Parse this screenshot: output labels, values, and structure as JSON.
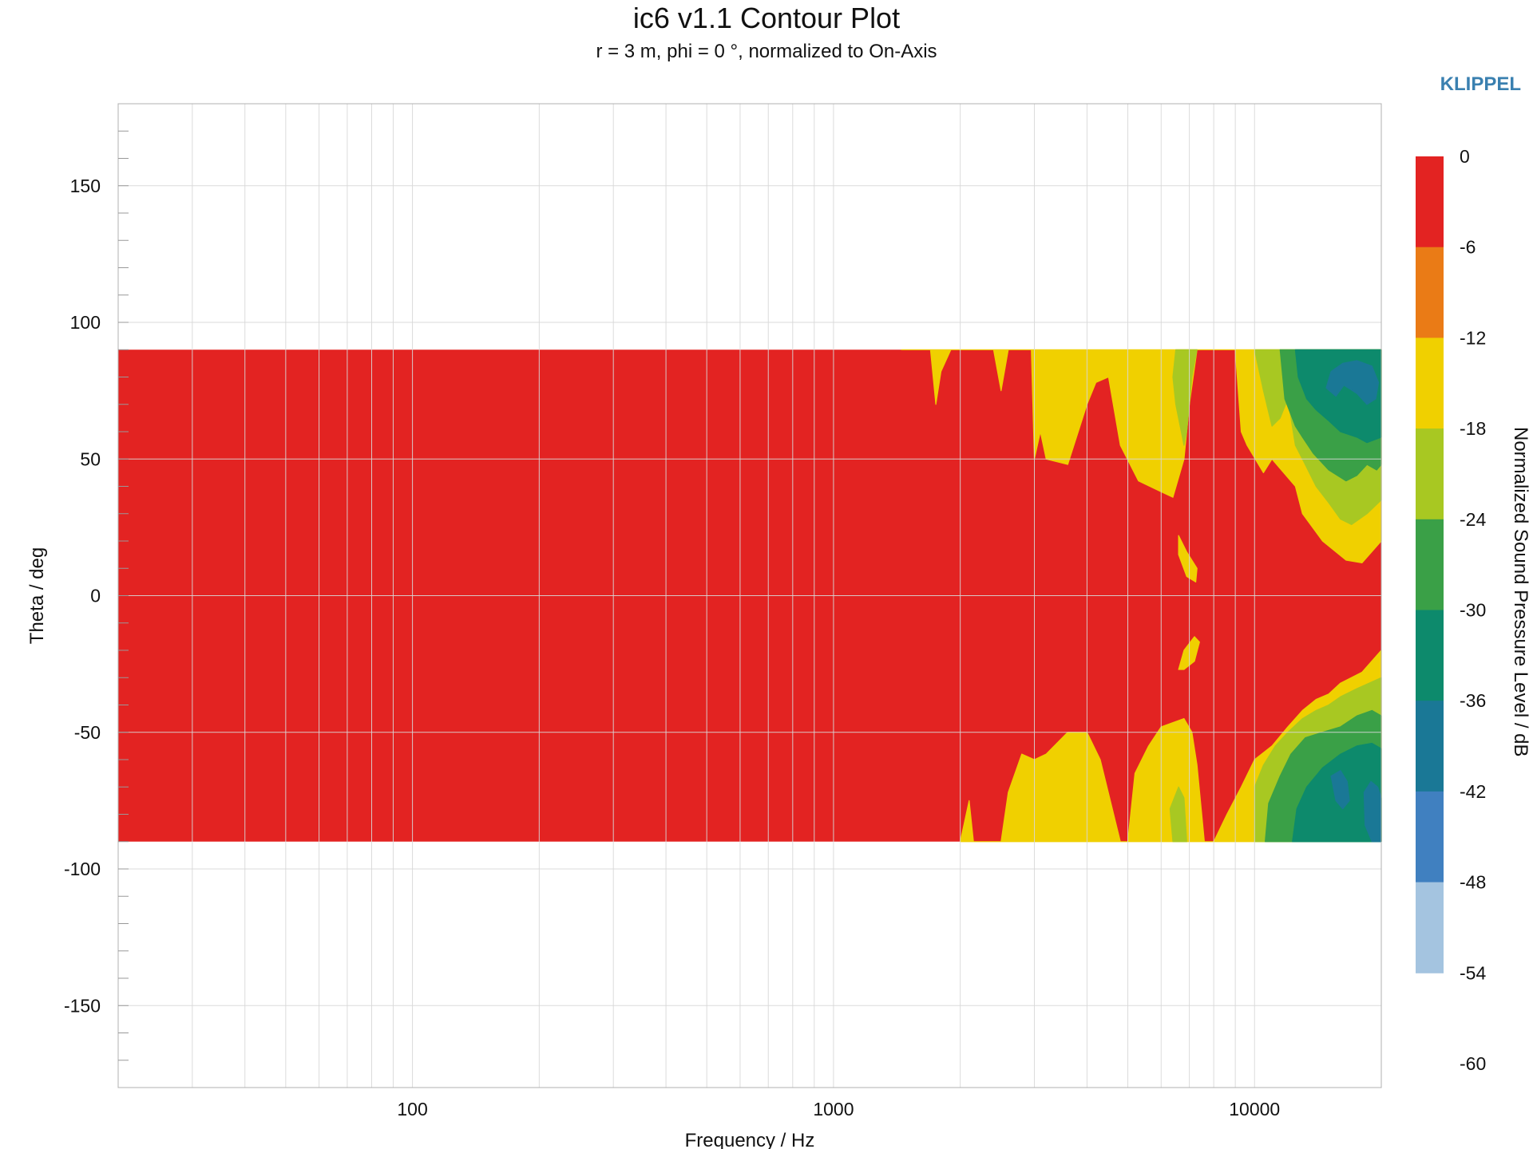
{
  "title": "ic6 v1.1 Contour Plot",
  "subtitle": "r = 3 m, phi = 0 °, normalized to On-Axis",
  "brand": {
    "label": "KLIPPEL",
    "color": "#3a80b0"
  },
  "chart_data": {
    "type": "heatmap",
    "title": "ic6 v1.1 Contour Plot",
    "subtitle": "r = 3 m, phi = 0 °, normalized to On-Axis",
    "xlabel": "Frequency / Hz",
    "ylabel": "Theta / deg",
    "x_scale": "log",
    "xlim": [
      20,
      20000
    ],
    "ylim": [
      -180,
      180
    ],
    "x_ticks": [
      {
        "value": 100,
        "label": "100"
      },
      {
        "value": 1000,
        "label": "1000"
      },
      {
        "value": 10000,
        "label": "10000"
      }
    ],
    "y_ticks": [
      {
        "value": 150,
        "label": "150"
      },
      {
        "value": 100,
        "label": "100"
      },
      {
        "value": 50,
        "label": "50"
      },
      {
        "value": 0,
        "label": "0"
      },
      {
        "value": -50,
        "label": "-50"
      },
      {
        "value": -100,
        "label": "-100"
      },
      {
        "value": -150,
        "label": "-150"
      }
    ],
    "grid": true,
    "data_theta_range": [
      -90,
      90
    ],
    "colorbar": {
      "label": "Normalized Sound Pressure Level / dB",
      "ticks": [
        0,
        -6,
        -12,
        -18,
        -24,
        -30,
        -36,
        -42,
        -48,
        -54,
        -60
      ],
      "bands": [
        {
          "min": -6,
          "max": 0,
          "color": "#e32322"
        },
        {
          "min": -12,
          "max": -6,
          "color": "#ea7b16"
        },
        {
          "min": -18,
          "max": -12,
          "color": "#f0d000"
        },
        {
          "min": -24,
          "max": -18,
          "color": "#a8c822"
        },
        {
          "min": -30,
          "max": -24,
          "color": "#3aa047"
        },
        {
          "min": -36,
          "max": -30,
          "color": "#0d8a6c"
        },
        {
          "min": -42,
          "max": -36,
          "color": "#1a7896"
        },
        {
          "min": -48,
          "max": -42,
          "color": "#4080c0"
        },
        {
          "min": -54,
          "max": -48,
          "color": "#a4c4e0"
        }
      ]
    },
    "regions": [
      {
        "level": -12,
        "points": [
          [
            1450,
            90
          ],
          [
            1700,
            90
          ],
          [
            1750,
            70
          ],
          [
            1800,
            82
          ],
          [
            1900,
            90
          ],
          [
            2400,
            90
          ],
          [
            2500,
            75
          ],
          [
            2600,
            90
          ],
          [
            2950,
            90
          ],
          [
            3000,
            50
          ],
          [
            3100,
            60
          ],
          [
            3200,
            50
          ],
          [
            3600,
            48
          ],
          [
            4000,
            70
          ],
          [
            4200,
            78
          ],
          [
            4500,
            80
          ],
          [
            4800,
            55
          ],
          [
            5300,
            42
          ],
          [
            6000,
            38
          ],
          [
            6400,
            36
          ],
          [
            6800,
            50
          ],
          [
            7000,
            70
          ],
          [
            7300,
            90
          ],
          [
            9000,
            90
          ],
          [
            9300,
            60
          ],
          [
            9600,
            55
          ],
          [
            10500,
            45
          ],
          [
            11000,
            50
          ],
          [
            12500,
            40
          ],
          [
            13000,
            30
          ],
          [
            14500,
            20
          ],
          [
            16500,
            13
          ],
          [
            18000,
            12
          ],
          [
            20000,
            20
          ],
          [
            20000,
            90
          ],
          [
            1450,
            90
          ]
        ]
      },
      {
        "level": -12,
        "points": [
          [
            6600,
            22
          ],
          [
            6900,
            16
          ],
          [
            7300,
            10
          ],
          [
            7250,
            5
          ],
          [
            6900,
            7
          ],
          [
            6600,
            15
          ],
          [
            6600,
            22
          ]
        ]
      },
      {
        "level": -12,
        "points": [
          [
            6600,
            -27
          ],
          [
            6800,
            -20
          ],
          [
            7200,
            -15
          ],
          [
            7400,
            -17
          ],
          [
            7200,
            -24
          ],
          [
            6800,
            -27
          ],
          [
            6600,
            -27
          ]
        ]
      },
      {
        "level": -12,
        "points": [
          [
            2000,
            -90
          ],
          [
            2100,
            -75
          ],
          [
            2150,
            -90
          ],
          [
            2500,
            -90
          ],
          [
            2600,
            -72
          ],
          [
            2800,
            -58
          ],
          [
            3000,
            -60
          ],
          [
            3200,
            -58
          ],
          [
            3600,
            -50
          ],
          [
            4000,
            -50
          ],
          [
            4300,
            -60
          ],
          [
            4800,
            -90
          ],
          [
            5000,
            -90
          ],
          [
            5200,
            -65
          ],
          [
            5600,
            -55
          ],
          [
            6000,
            -48
          ],
          [
            6800,
            -45
          ],
          [
            7100,
            -50
          ],
          [
            7300,
            -62
          ],
          [
            7600,
            -90
          ],
          [
            8000,
            -90
          ],
          [
            8600,
            -80
          ],
          [
            9300,
            -70
          ],
          [
            10000,
            -60
          ],
          [
            11000,
            -55
          ],
          [
            12000,
            -48
          ],
          [
            13000,
            -42
          ],
          [
            14000,
            -38
          ],
          [
            15000,
            -36
          ],
          [
            16000,
            -32
          ],
          [
            18000,
            -28
          ],
          [
            20000,
            -20
          ],
          [
            20000,
            -90
          ],
          [
            2000,
            -90
          ]
        ]
      },
      {
        "level": -18,
        "points": [
          [
            6500,
            90
          ],
          [
            7300,
            90
          ],
          [
            7100,
            80
          ],
          [
            6900,
            60
          ],
          [
            6800,
            55
          ],
          [
            6700,
            60
          ],
          [
            6500,
            70
          ],
          [
            6400,
            80
          ],
          [
            6500,
            90
          ]
        ]
      },
      {
        "level": -18,
        "points": [
          [
            10000,
            90
          ],
          [
            10500,
            75
          ],
          [
            11000,
            62
          ],
          [
            11500,
            65
          ],
          [
            12000,
            72
          ],
          [
            12500,
            55
          ],
          [
            13000,
            50
          ],
          [
            14000,
            40
          ],
          [
            15000,
            34
          ],
          [
            16000,
            28
          ],
          [
            17000,
            26
          ],
          [
            18500,
            30
          ],
          [
            20000,
            35
          ],
          [
            20000,
            90
          ],
          [
            10000,
            90
          ]
        ]
      },
      {
        "level": -18,
        "points": [
          [
            6400,
            -90
          ],
          [
            6300,
            -78
          ],
          [
            6600,
            -70
          ],
          [
            6800,
            -74
          ],
          [
            6900,
            -90
          ],
          [
            6400,
            -90
          ]
        ]
      },
      {
        "level": -18,
        "points": [
          [
            10000,
            -90
          ],
          [
            10000,
            -70
          ],
          [
            10500,
            -62
          ],
          [
            11200,
            -55
          ],
          [
            12000,
            -50
          ],
          [
            13000,
            -45
          ],
          [
            14000,
            -42
          ],
          [
            15000,
            -40
          ],
          [
            16000,
            -37
          ],
          [
            17500,
            -34
          ],
          [
            20000,
            -30
          ],
          [
            20000,
            -90
          ],
          [
            10000,
            -90
          ]
        ]
      },
      {
        "level": -24,
        "points": [
          [
            11500,
            90
          ],
          [
            11800,
            72
          ],
          [
            12500,
            62
          ],
          [
            13000,
            58
          ],
          [
            13800,
            52
          ],
          [
            15000,
            46
          ],
          [
            16500,
            42
          ],
          [
            17500,
            44
          ],
          [
            18500,
            48
          ],
          [
            19500,
            46
          ],
          [
            20000,
            48
          ],
          [
            20000,
            90
          ],
          [
            11500,
            90
          ]
        ]
      },
      {
        "level": -24,
        "points": [
          [
            10600,
            -90
          ],
          [
            10800,
            -76
          ],
          [
            11500,
            -66
          ],
          [
            12200,
            -58
          ],
          [
            13200,
            -52
          ],
          [
            14500,
            -50
          ],
          [
            16000,
            -48
          ],
          [
            17500,
            -44
          ],
          [
            19000,
            -42
          ],
          [
            20000,
            -44
          ],
          [
            20000,
            -90
          ],
          [
            10600,
            -90
          ]
        ]
      },
      {
        "level": -30,
        "points": [
          [
            12500,
            90
          ],
          [
            12700,
            80
          ],
          [
            13300,
            72
          ],
          [
            14000,
            68
          ],
          [
            15000,
            64
          ],
          [
            16000,
            60
          ],
          [
            17500,
            58
          ],
          [
            18500,
            56
          ],
          [
            20000,
            58
          ],
          [
            20000,
            90
          ],
          [
            12500,
            90
          ]
        ]
      },
      {
        "level": -30,
        "points": [
          [
            12300,
            -90
          ],
          [
            12600,
            -78
          ],
          [
            13300,
            -70
          ],
          [
            14500,
            -63
          ],
          [
            16000,
            -58
          ],
          [
            17500,
            -55
          ],
          [
            19000,
            -54
          ],
          [
            20000,
            -56
          ],
          [
            20000,
            -90
          ],
          [
            12300,
            -90
          ]
        ]
      },
      {
        "level": -36,
        "points": [
          [
            14800,
            76
          ],
          [
            15600,
            73
          ],
          [
            16300,
            77
          ],
          [
            17500,
            74
          ],
          [
            18500,
            70
          ],
          [
            19400,
            72
          ],
          [
            19700,
            78
          ],
          [
            19000,
            84
          ],
          [
            17500,
            86
          ],
          [
            16200,
            85
          ],
          [
            15200,
            82
          ],
          [
            14800,
            76
          ]
        ]
      },
      {
        "level": -36,
        "points": [
          [
            15200,
            -66
          ],
          [
            16000,
            -64
          ],
          [
            16600,
            -68
          ],
          [
            16800,
            -75
          ],
          [
            16200,
            -78
          ],
          [
            15600,
            -75
          ],
          [
            15200,
            -66
          ]
        ]
      },
      {
        "level": -36,
        "points": [
          [
            18200,
            -72
          ],
          [
            18900,
            -68
          ],
          [
            19600,
            -70
          ],
          [
            20000,
            -74
          ],
          [
            20000,
            -90
          ],
          [
            19000,
            -90
          ],
          [
            18300,
            -84
          ],
          [
            18200,
            -72
          ]
        ]
      }
    ]
  }
}
